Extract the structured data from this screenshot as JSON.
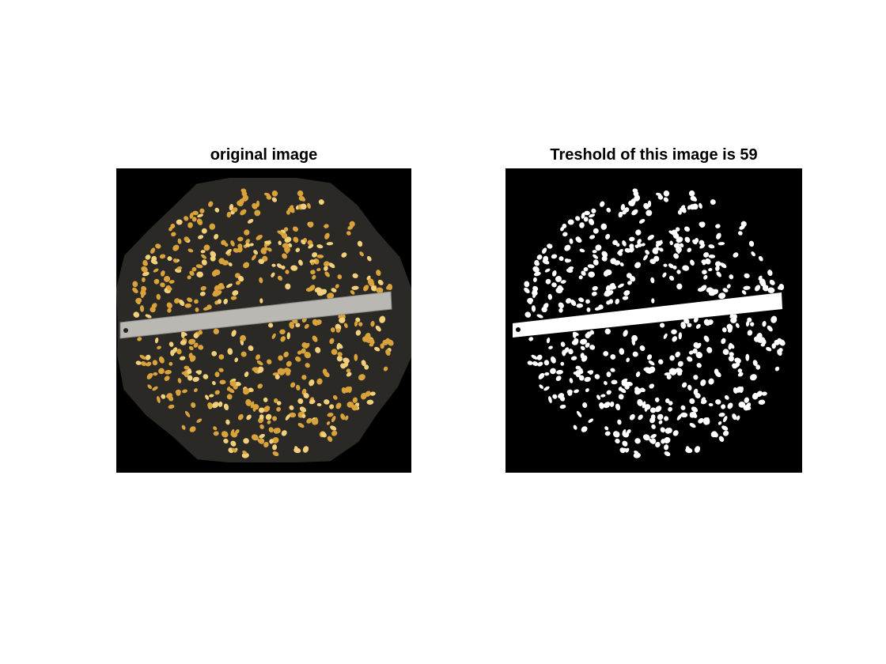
{
  "figure": {
    "left_title": "original image",
    "right_title": "Treshold of this image is 59"
  },
  "colors": {
    "background": "#ffffff",
    "panel_background": "#000000",
    "cloth": "#2b2926",
    "seed": "#d9a23a",
    "seed_highlight": "#f2cf7a",
    "ruler": "#b9b8b2",
    "binary_foreground": "#ffffff"
  },
  "icons": {
    "left_panel": "corn-kernels-on-cloth-photo",
    "right_panel": "binary-threshold-mask"
  }
}
